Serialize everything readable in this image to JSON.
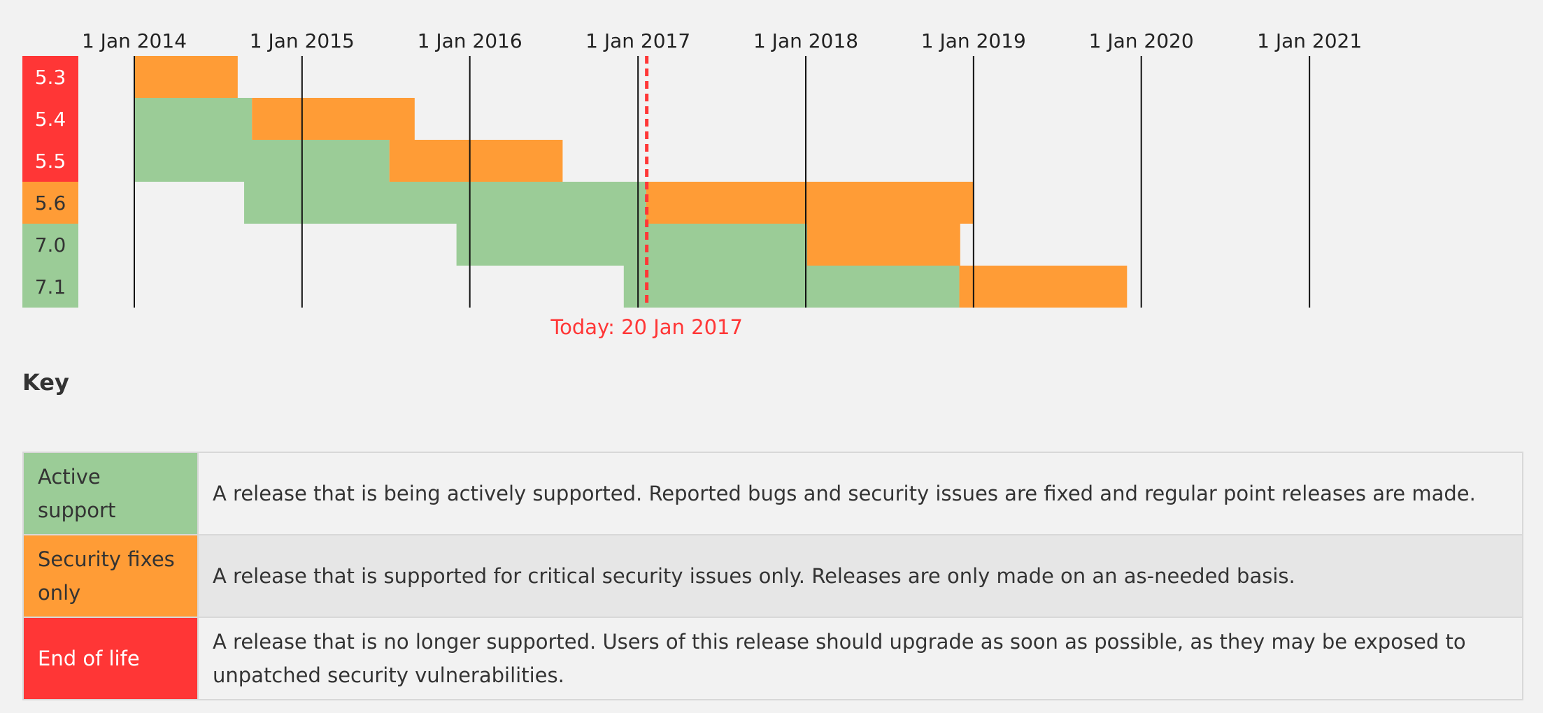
{
  "chart_data": {
    "type": "gantt",
    "x_axis": {
      "type": "date",
      "ticks": [
        "1 Jan 2014",
        "1 Jan 2015",
        "1 Jan 2016",
        "1 Jan 2017",
        "1 Jan 2018",
        "1 Jan 2019",
        "1 Jan 2020",
        "1 Jan 2021"
      ]
    },
    "today": {
      "date": "2017-01-20",
      "label": "Today: 20 Jan 2017"
    },
    "branches": [
      {
        "version": "5.3",
        "status": "eol",
        "active": [
          "2014-01-01",
          "2014-01-01"
        ],
        "security": [
          "2014-01-01",
          "2014-08-14"
        ]
      },
      {
        "version": "5.4",
        "status": "eol",
        "active": [
          "2014-01-01",
          "2014-09-14"
        ],
        "security": [
          "2014-09-14",
          "2015-09-03"
        ]
      },
      {
        "version": "5.5",
        "status": "eol",
        "active": [
          "2014-01-01",
          "2015-07-10"
        ],
        "security": [
          "2015-07-10",
          "2016-07-21"
        ]
      },
      {
        "version": "5.6",
        "status": "security",
        "active": [
          "2014-08-28",
          "2017-01-19"
        ],
        "security": [
          "2017-01-19",
          "2018-12-31"
        ]
      },
      {
        "version": "7.0",
        "status": "active",
        "active": [
          "2015-12-03",
          "2018-01-04"
        ],
        "security": [
          "2018-01-04",
          "2018-12-03"
        ]
      },
      {
        "version": "7.1",
        "status": "active",
        "active": [
          "2016-12-01",
          "2018-12-01"
        ],
        "security": [
          "2018-12-01",
          "2019-12-01"
        ]
      }
    ]
  },
  "colors": {
    "active": "#9bcc97",
    "security": "#ff9c36",
    "eol": "#ff3636",
    "today": "#ff3636",
    "grid": "#111111",
    "background": "#f2f2f2"
  },
  "key": {
    "title": "Key",
    "rows": [
      {
        "status": "active",
        "label": "Active support",
        "description": "A release that is being actively supported. Reported bugs and security issues are fixed and regular point releases are made."
      },
      {
        "status": "security",
        "label": "Security fixes only",
        "description": "A release that is supported for critical security issues only. Releases are only made on an as-needed basis."
      },
      {
        "status": "eol",
        "label": "End of life",
        "description": "A release that is no longer supported. Users of this release should upgrade as soon as possible, as they may be exposed to unpatched security vulnerabilities."
      }
    ]
  }
}
